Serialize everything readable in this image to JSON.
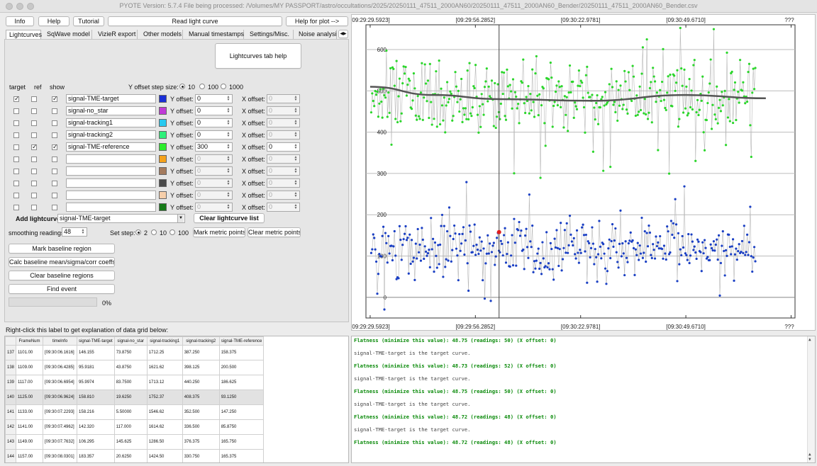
{
  "window": {
    "title": "PYOTE Version: 5.7.4  File being processed: /Volumes/MY PASSPORT/astro/occultations/2025/20250111_47511_2000AN60/20250111_47511_2000AN60_Bender/20250111_47511_2000AN60_Bender.csv"
  },
  "toolbar": {
    "info": "Info",
    "help": "Help",
    "tutorial": "Tutorial",
    "read_lightcurve": "Read light curve",
    "help_plot": "Help for plot -->"
  },
  "tabs": [
    "Lightcurves",
    "SqWave model",
    "VizieR export",
    "Other models",
    "Manual timestamps",
    "Settings/Misc.",
    "Noise analysis/"
  ],
  "tab_scroll_icon": "arrow-icons",
  "lightcurves": {
    "help_button": "Lightcurves tab help",
    "col_target": "target",
    "col_ref": "ref",
    "col_show": "show",
    "yoffset_step_label": "Y offset step size:",
    "yoffset_steps": [
      "10",
      "100",
      "1000"
    ],
    "yoffset_step_selected": "10",
    "y_offset_label": "Y offset:",
    "x_offset_label": "X offset:",
    "rows": [
      {
        "target": true,
        "ref": false,
        "show": true,
        "name": "signal-TME-target",
        "color": "#1a2fd6",
        "y": "0",
        "x": "0",
        "enabled": true,
        "x_enabled": false
      },
      {
        "target": false,
        "ref": false,
        "show": false,
        "name": "signal-no_star",
        "color": "#c03ad6",
        "y": "0",
        "x": "0",
        "enabled": true,
        "x_enabled": false
      },
      {
        "target": false,
        "ref": false,
        "show": false,
        "name": "signal-tracking1",
        "color": "#27c9f0",
        "y": "0",
        "x": "0",
        "enabled": true,
        "x_enabled": false
      },
      {
        "target": false,
        "ref": false,
        "show": false,
        "name": "signal-tracking2",
        "color": "#2ef07a",
        "y": "0",
        "x": "0",
        "enabled": true,
        "x_enabled": false
      },
      {
        "target": false,
        "ref": true,
        "show": true,
        "name": "signal-TME-reference",
        "color": "#2bec2b",
        "y": "300",
        "x": "0",
        "enabled": true,
        "x_enabled": true
      },
      {
        "target": false,
        "ref": false,
        "show": false,
        "name": "",
        "color": "#f5a21b",
        "y": "0",
        "x": "0",
        "enabled": false,
        "x_enabled": false
      },
      {
        "target": false,
        "ref": false,
        "show": false,
        "name": "",
        "color": "#a47b5e",
        "y": "0",
        "x": "0",
        "enabled": false,
        "x_enabled": false
      },
      {
        "target": false,
        "ref": false,
        "show": false,
        "name": "",
        "color": "#4a4a4a",
        "y": "0",
        "x": "0",
        "enabled": false,
        "x_enabled": false
      },
      {
        "target": false,
        "ref": false,
        "show": false,
        "name": "",
        "color": "#f7cfaa",
        "y": "0",
        "x": "0",
        "enabled": false,
        "x_enabled": false
      },
      {
        "target": false,
        "ref": false,
        "show": false,
        "name": "",
        "color": "#157a17",
        "y": "0",
        "x": "0",
        "enabled": false,
        "x_enabled": false
      }
    ],
    "add_label": "Add lightcurve",
    "add_selected": "signal-TME-target",
    "clear_list": "Clear lightcurve list",
    "smoothing_label": "smoothing readings",
    "smoothing_value": "48",
    "set_step_label": "Set step:",
    "set_steps": [
      "2",
      "10",
      "100"
    ],
    "set_step_selected": "2",
    "mark_metric": "Mark metric points",
    "clear_metric": "Clear metric points",
    "mark_baseline": "Mark baseline region",
    "calc_baseline": "Calc baseline mean/sigma/corr coeffs",
    "clear_baseline": "Clear baseline regions",
    "find_event": "Find event",
    "progress_percent": 0,
    "progress_label": "0%"
  },
  "grid_hint": "Right-click this label to get explanation of data grid below:",
  "grid": {
    "headers": [
      "",
      "FrameNum",
      "timeInfo",
      "signal-TME-target",
      "signal-no_star",
      "signal-tracking1",
      "signal-tracking2",
      "signal-TME-reference"
    ],
    "rows": [
      [
        "137",
        "1101.00",
        "[09:30:06.1616]",
        "146.155",
        "73.8750",
        "1712.25",
        "387.250",
        "158.375"
      ],
      [
        "138",
        "1109.00",
        "[09:30:06.4285]",
        "95.9181",
        "43.8750",
        "1621.62",
        "398.125",
        "200.500"
      ],
      [
        "139",
        "1117.00",
        "[09:30:06.6954]",
        "95.9974",
        "83.7500",
        "1713.12",
        "440.250",
        "186.625"
      ],
      [
        "140",
        "1125.00",
        "[09:30:06.9624]",
        "158.810",
        "19.6250",
        "1752.37",
        "408.375",
        "93.1250"
      ],
      [
        "141",
        "1133.00",
        "[09:30:07.2293]",
        "158.216",
        "5.50000",
        "1546.62",
        "352.500",
        "147.250"
      ],
      [
        "142",
        "1141.00",
        "[09:30:07.4962]",
        "142.320",
        "117.000",
        "1614.62",
        "336.500",
        "85.8750"
      ],
      [
        "143",
        "1149.00",
        "[09:30:07.7632]",
        "106.295",
        "145.625",
        "1286.50",
        "376.375",
        "165.750"
      ],
      [
        "144",
        "1157.00",
        "[09:30:08.0301]",
        "183.357",
        "20.6250",
        "1424.50",
        "330.750",
        "165.375"
      ],
      [
        "145",
        "1165.00",
        "[09:30:08.2970]",
        "175.710",
        "-141.500",
        "1507.87",
        "297.000",
        "154.750"
      ]
    ],
    "selected_row": 3
  },
  "console": [
    {
      "style": "green",
      "text": "Flatness (minimize this value): 48.75 (readings: 50) (X offset: 0)"
    },
    {
      "style": "gray",
      "text": "signal-TME-target is the target curve."
    },
    {
      "style": "green",
      "text": "Flatness (minimize this value): 48.73 (readings: 52) (X offset: 0)"
    },
    {
      "style": "gray",
      "text": "signal-TME-target is the target curve."
    },
    {
      "style": "green",
      "text": "Flatness (minimize this value): 48.75 (readings: 50) (X offset: 0)"
    },
    {
      "style": "gray",
      "text": "signal-TME-target is the target curve."
    },
    {
      "style": "green",
      "text": "Flatness (minimize this value): 48.72 (readings: 48) (X offset: 0)"
    },
    {
      "style": "gray",
      "text": "signal-TME-target is the target curve."
    },
    {
      "style": "green",
      "text": "Flatness (minimize this value): 48.72 (readings: 48) (X offset: 0)"
    }
  ],
  "chart_data": {
    "type": "scatter",
    "x_tick_labels": [
      "[09:29:29.5923]",
      "[09:29:56.2852]",
      "[09:30:22.9781]",
      "[09:30:49.6710]",
      "???"
    ],
    "x_tick_frames": [
      880,
      1080,
      1280,
      1480,
      1680
    ],
    "y_ticks": [
      0,
      100,
      200,
      300,
      400,
      500,
      600
    ],
    "x_range_frames": [
      872,
      1632
    ],
    "ylim": [
      -50,
      660
    ],
    "cursor_frame": 1125,
    "grid": true,
    "series": [
      {
        "name": "signal-TME-reference",
        "color": "#2bd62b",
        "values_mean": 490,
        "values_sd": 70,
        "offset": 300,
        "count": 380,
        "seed": 7
      },
      {
        "name": "signal-TME-target",
        "color": "#1a3fc4",
        "values_mean": 115,
        "values_sd": 55,
        "count": 380,
        "seed": 3
      },
      {
        "name": "smoothed",
        "color": "#555555",
        "curve_frames": [
          880,
          1000,
          1125,
          1300,
          1480,
          1632
        ],
        "curve_values": [
          510,
          490,
          480,
          476,
          490,
          482
        ]
      }
    ],
    "highlight_point": {
      "frame": 1125,
      "value": 158,
      "color": "#e11d1d"
    }
  }
}
